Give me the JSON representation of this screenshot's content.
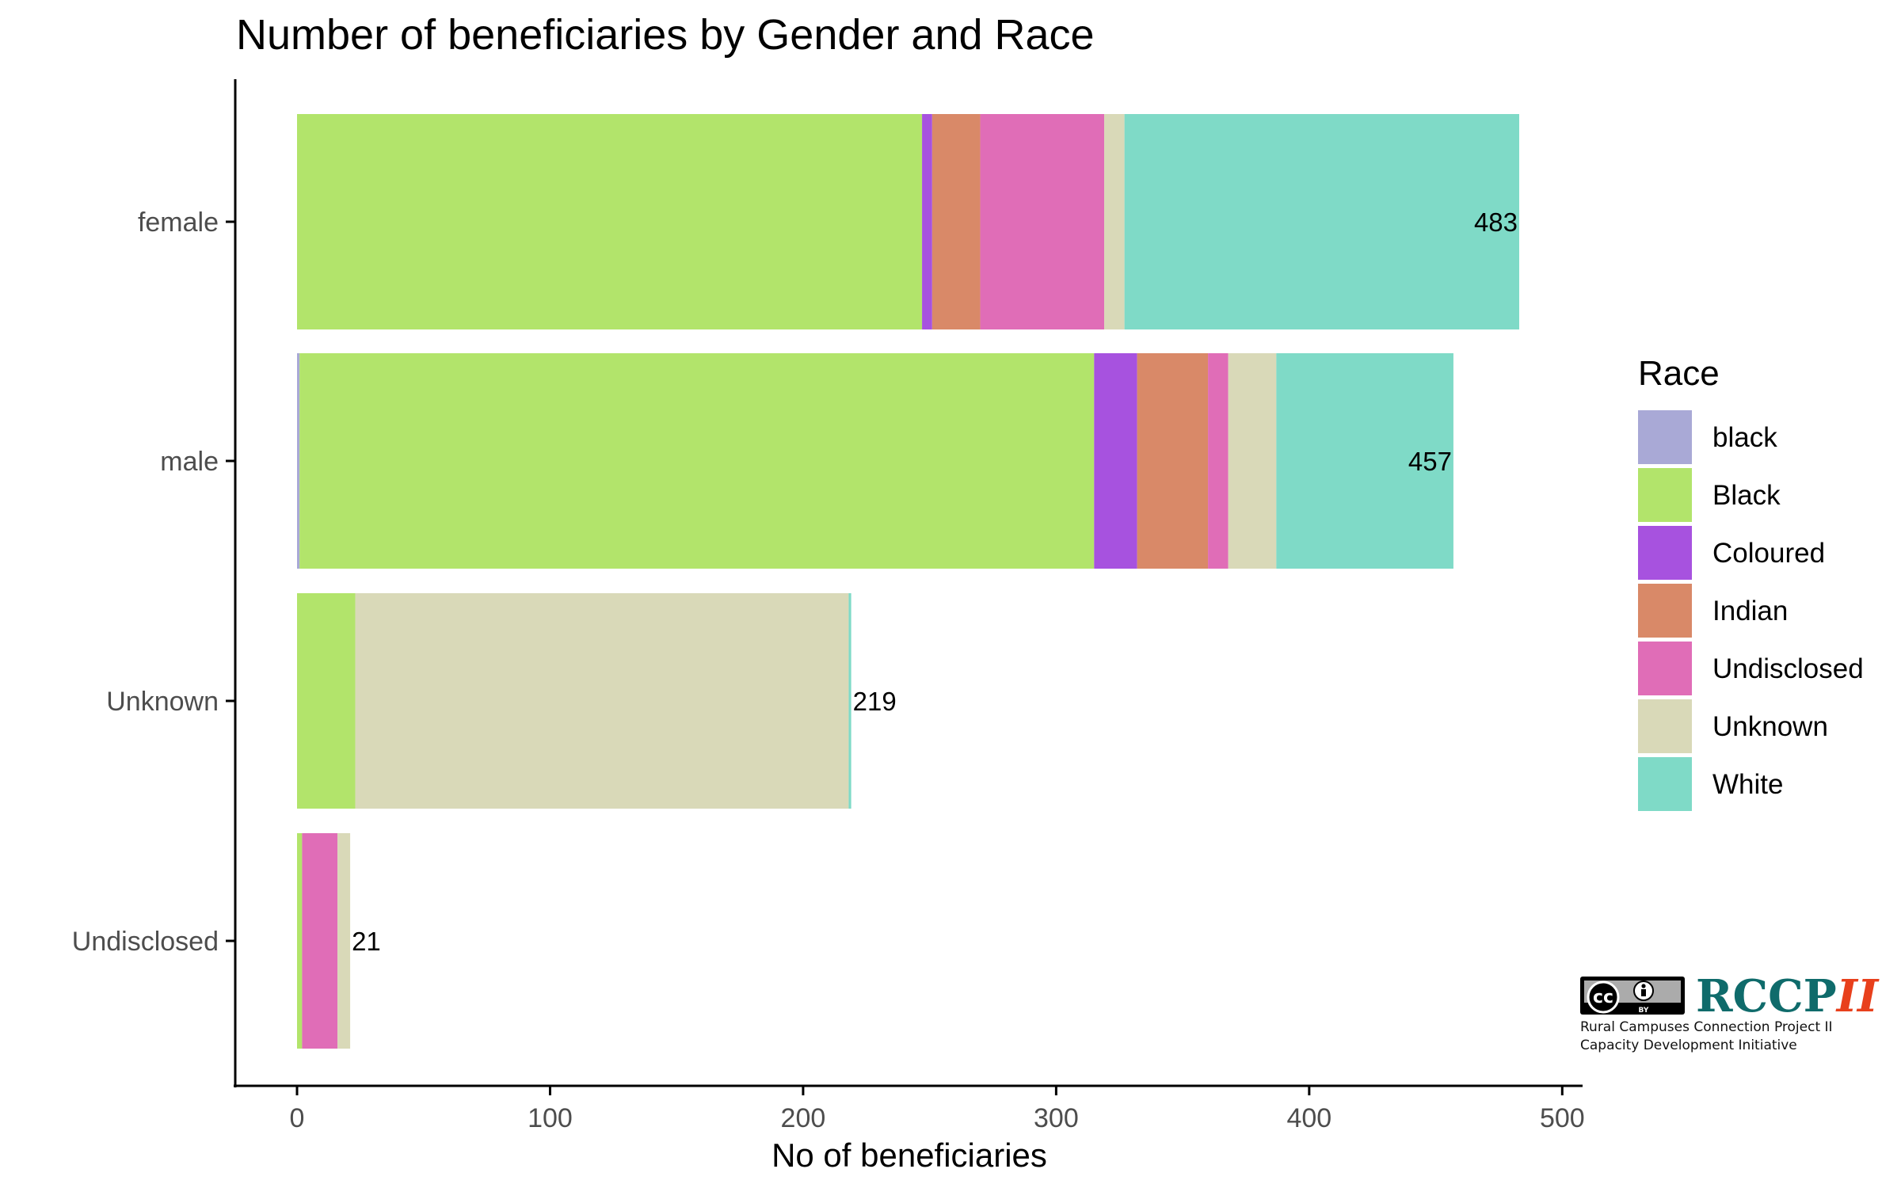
{
  "chart_data": {
    "type": "bar",
    "orientation": "horizontal",
    "stacked": true,
    "title": "Number of beneficiaries by Gender and Race",
    "xlabel": "No of beneficiaries",
    "ylabel": "",
    "xlim": [
      0,
      500
    ],
    "xticks": [
      "0",
      "100",
      "200",
      "300",
      "400",
      "500"
    ],
    "grid": false,
    "legend_position": "right",
    "categories": [
      "female",
      "male",
      "Unknown",
      "Undisclosed"
    ],
    "totals": [
      483,
      457,
      219,
      21
    ],
    "legend_title": "Race",
    "series": [
      {
        "name": "black",
        "color": "#a9a9d6",
        "values": [
          0,
          1,
          0,
          0
        ]
      },
      {
        "name": "Black",
        "color": "#b2e46b",
        "values": [
          247,
          314,
          23,
          2
        ]
      },
      {
        "name": "Coloured",
        "color": "#a752df",
        "values": [
          4,
          17,
          0,
          0
        ]
      },
      {
        "name": "Indian",
        "color": "#d98968",
        "values": [
          19,
          28,
          0,
          0
        ]
      },
      {
        "name": "Undisclosed",
        "color": "#e06db7",
        "values": [
          49,
          8,
          0,
          14
        ]
      },
      {
        "name": "Unknown",
        "color": "#d9d9b8",
        "values": [
          8,
          19,
          195,
          5
        ]
      },
      {
        "name": "White",
        "color": "#7fdac7",
        "values": [
          156,
          70,
          1,
          0
        ]
      }
    ]
  },
  "logo": {
    "cc_text": "cc",
    "by_text": "BY",
    "name_main": "RCCP",
    "name_roman": "II",
    "line1": "Rural Campuses Connection Project II",
    "line2": "Capacity Development Initiative"
  }
}
